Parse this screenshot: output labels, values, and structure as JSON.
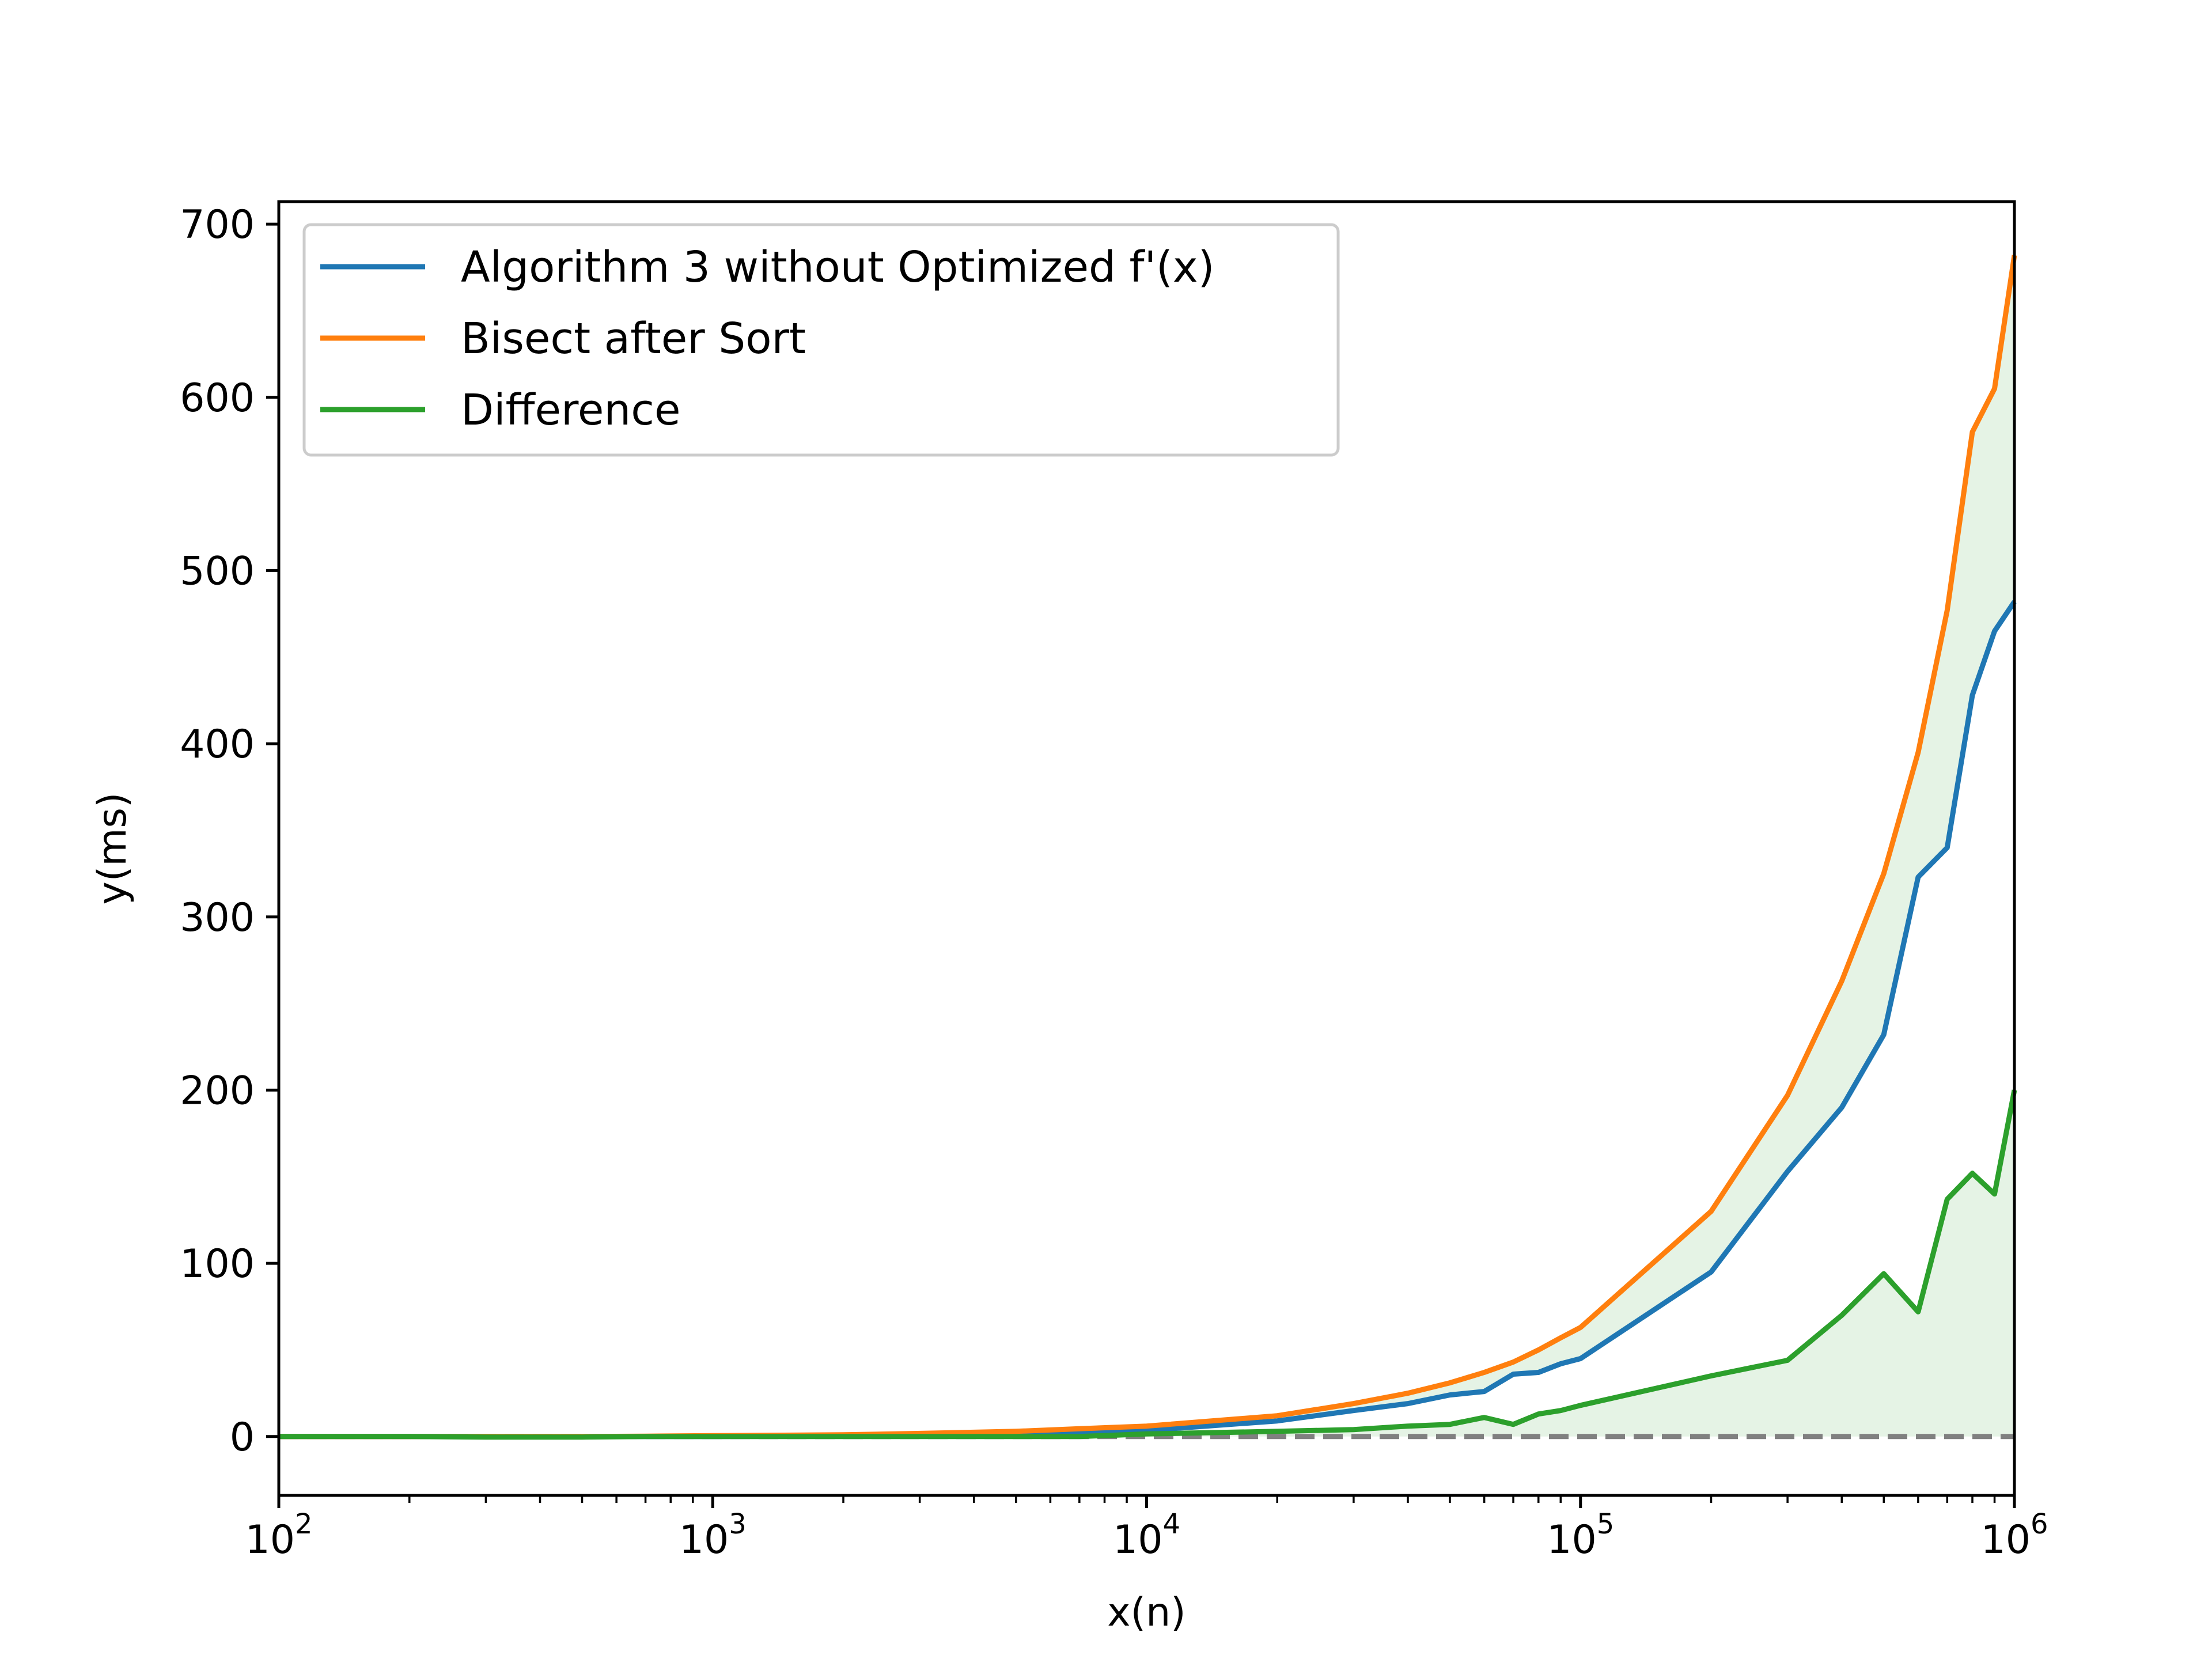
{
  "chart_data": {
    "type": "line",
    "xlabel": "x(n)",
    "ylabel": "y(ms)",
    "xscale": "log",
    "xlim": [
      100,
      1000000
    ],
    "ylim": [
      -34,
      713
    ],
    "grid": false,
    "legend_position": "top-left",
    "x_ticks": [
      {
        "value": 100,
        "base": "10",
        "exp": "2"
      },
      {
        "value": 1000,
        "base": "10",
        "exp": "3"
      },
      {
        "value": 10000,
        "base": "10",
        "exp": "4"
      },
      {
        "value": 100000,
        "base": "10",
        "exp": "5"
      },
      {
        "value": 1000000,
        "base": "10",
        "exp": "6"
      }
    ],
    "y_ticks": [
      {
        "value": 0,
        "label": "0"
      },
      {
        "value": 100,
        "label": "100"
      },
      {
        "value": 200,
        "label": "200"
      },
      {
        "value": 300,
        "label": "300"
      },
      {
        "value": 400,
        "label": "400"
      },
      {
        "value": 500,
        "label": "500"
      },
      {
        "value": 600,
        "label": "600"
      },
      {
        "value": 700,
        "label": "700"
      }
    ],
    "reference_line": {
      "y": 0,
      "style": "dashed",
      "color": "#808080"
    },
    "fill_between": {
      "lower": "Algorithm 3 without Optimized f'(x)",
      "upper": "Bisect after Sort",
      "color": "#2ca02c",
      "opacity": 0.12
    },
    "difference_fill": {
      "color": "#2ca02c",
      "opacity": 0.12
    },
    "series": [
      {
        "name": "Algorithm 3 without Optimized f'(x)",
        "color": "#1f77b4",
        "x": [
          100,
          200,
          300,
          500,
          700,
          1000,
          2000,
          3000,
          5000,
          7000,
          10000,
          20000,
          30000,
          40000,
          50000,
          60000,
          70000,
          80000,
          90000,
          100000,
          200000,
          300000,
          400000,
          500000,
          600000,
          700000,
          800000,
          900000,
          1000000
        ],
        "y": [
          0,
          0,
          0,
          0,
          0,
          0,
          0.3,
          0.6,
          1.2,
          2,
          3.5,
          9,
          15,
          19,
          24,
          26,
          36,
          37,
          42,
          45,
          95,
          153,
          190,
          232,
          323,
          340,
          428,
          465,
          482
        ]
      },
      {
        "name": "Bisect after Sort",
        "color": "#ff7f0e",
        "x": [
          100,
          200,
          300,
          500,
          700,
          1000,
          2000,
          3000,
          5000,
          7000,
          10000,
          20000,
          30000,
          40000,
          50000,
          60000,
          70000,
          80000,
          90000,
          100000,
          200000,
          300000,
          400000,
          500000,
          600000,
          700000,
          800000,
          900000,
          1000000
        ],
        "y": [
          0,
          0,
          0,
          0,
          0.2,
          0.5,
          1,
          1.8,
          3,
          4.5,
          6,
          12,
          19,
          25,
          31,
          37,
          43,
          50,
          57,
          63,
          130,
          197,
          263,
          325,
          395,
          477,
          580,
          605,
          682
        ]
      },
      {
        "name": "Difference",
        "color": "#2ca02c",
        "x": [
          100,
          200,
          300,
          500,
          700,
          1000,
          2000,
          3000,
          5000,
          7000,
          10000,
          20000,
          30000,
          40000,
          50000,
          60000,
          70000,
          80000,
          90000,
          100000,
          200000,
          300000,
          400000,
          500000,
          600000,
          700000,
          800000,
          900000,
          1000000
        ],
        "y": [
          0,
          0,
          -0.3,
          -0.3,
          0,
          0,
          0,
          0,
          0,
          0,
          1.5,
          3,
          4,
          6,
          7,
          11,
          7,
          13,
          15,
          18,
          35,
          44,
          70,
          94,
          72,
          137,
          152,
          140,
          200
        ]
      }
    ]
  }
}
